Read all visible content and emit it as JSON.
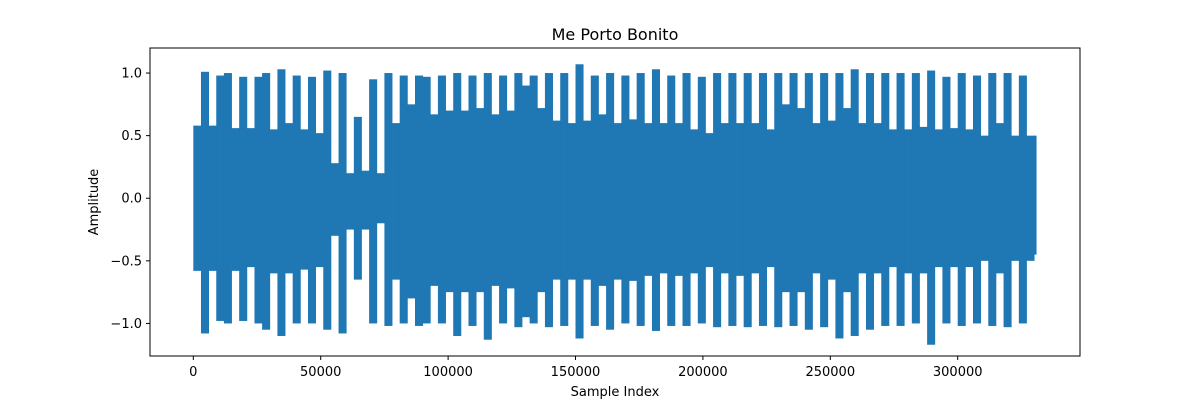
{
  "chart_data": {
    "type": "line",
    "title": "Me Porto Bonito",
    "xlabel": "Sample Index",
    "ylabel": "Amplitude",
    "xlim": [
      -17000,
      348000
    ],
    "ylim": [
      -1.26,
      1.2
    ],
    "x_ticks": [
      0,
      50000,
      100000,
      150000,
      200000,
      250000,
      300000
    ],
    "x_tick_labels": [
      "0",
      "50000",
      "100000",
      "150000",
      "200000",
      "250000",
      "300000"
    ],
    "y_ticks": [
      -1.0,
      -0.5,
      0.0,
      0.5,
      1.0
    ],
    "y_tick_labels": [
      "−1.0",
      "−0.5",
      "0.0",
      "0.5",
      "1.0"
    ],
    "grid": false,
    "legend": "none",
    "series": [
      {
        "color": "#1f77b4",
        "x": [
          0,
          3000,
          6000,
          9000,
          12000,
          15000,
          18000,
          21000,
          24000,
          27000,
          30000,
          33000,
          36000,
          39000,
          42000,
          45000,
          48000,
          51000,
          54000,
          57000,
          60000,
          63000,
          66000,
          69000,
          72000,
          75000,
          78000,
          81000,
          84000,
          87000,
          90000,
          93000,
          96000,
          99000,
          102000,
          105000,
          108000,
          111000,
          114000,
          117000,
          120000,
          123000,
          126000,
          129000,
          132000,
          135000,
          138000,
          141000,
          144000,
          147000,
          150000,
          153000,
          156000,
          159000,
          162000,
          165000,
          168000,
          171000,
          174000,
          177000,
          180000,
          183000,
          186000,
          189000,
          192000,
          195000,
          198000,
          201000,
          204000,
          207000,
          210000,
          213000,
          216000,
          219000,
          222000,
          225000,
          228000,
          231000,
          234000,
          237000,
          240000,
          243000,
          246000,
          249000,
          252000,
          255000,
          258000,
          261000,
          264000,
          267000,
          270000,
          273000,
          276000,
          279000,
          282000,
          285000,
          288000,
          291000,
          294000,
          297000,
          300000,
          303000,
          306000,
          309000,
          312000,
          315000,
          318000,
          321000,
          324000,
          327000,
          330000
        ],
        "upper": [
          0.58,
          1.01,
          0.58,
          0.98,
          1.0,
          0.56,
          0.97,
          0.56,
          0.97,
          1.0,
          0.55,
          1.03,
          0.6,
          0.98,
          0.55,
          0.97,
          0.52,
          1.02,
          0.28,
          1.0,
          0.2,
          0.65,
          0.22,
          0.95,
          0.2,
          1.0,
          0.6,
          0.98,
          0.75,
          0.98,
          0.97,
          0.67,
          0.98,
          0.7,
          1.0,
          0.7,
          0.98,
          0.72,
          1.0,
          0.67,
          0.98,
          0.7,
          1.0,
          0.9,
          0.98,
          0.72,
          1.0,
          0.62,
          1.0,
          0.6,
          1.07,
          0.62,
          0.98,
          0.67,
          1.0,
          0.6,
          0.98,
          0.63,
          1.0,
          0.6,
          1.03,
          0.6,
          0.98,
          0.6,
          1.0,
          0.55,
          0.97,
          0.52,
          1.0,
          0.6,
          1.0,
          0.6,
          1.0,
          0.6,
          1.0,
          0.55,
          1.0,
          0.75,
          1.0,
          0.72,
          1.0,
          0.6,
          1.0,
          0.62,
          1.0,
          0.72,
          1.03,
          0.6,
          1.0,
          0.6,
          1.0,
          0.55,
          1.0,
          0.55,
          1.0,
          0.57,
          1.02,
          0.55,
          0.97,
          0.56,
          1.0,
          0.55,
          0.98,
          0.5,
          1.0,
          0.6,
          1.0,
          0.5,
          0.98,
          0.5,
          0.5
        ],
        "lower": [
          -0.58,
          -1.08,
          -0.58,
          -0.98,
          -1.0,
          -0.58,
          -0.98,
          -0.55,
          -1.0,
          -1.05,
          -0.6,
          -1.1,
          -0.6,
          -1.0,
          -0.57,
          -1.0,
          -0.55,
          -1.05,
          -0.3,
          -1.08,
          -0.25,
          -0.65,
          -0.25,
          -1.0,
          -0.2,
          -1.02,
          -0.65,
          -1.0,
          -0.8,
          -1.02,
          -1.0,
          -0.7,
          -1.0,
          -0.75,
          -1.1,
          -0.75,
          -1.02,
          -0.75,
          -1.13,
          -0.7,
          -1.0,
          -0.72,
          -1.03,
          -0.95,
          -1.0,
          -0.75,
          -1.03,
          -0.65,
          -1.02,
          -0.65,
          -1.12,
          -0.65,
          -1.02,
          -0.7,
          -1.05,
          -0.65,
          -1.0,
          -0.66,
          -1.02,
          -0.62,
          -1.06,
          -0.6,
          -1.02,
          -0.62,
          -1.02,
          -0.6,
          -1.0,
          -0.55,
          -1.03,
          -0.6,
          -1.02,
          -0.62,
          -1.03,
          -0.6,
          -1.02,
          -0.55,
          -1.03,
          -0.75,
          -1.02,
          -0.75,
          -1.05,
          -0.6,
          -1.03,
          -0.65,
          -1.12,
          -0.75,
          -1.1,
          -0.6,
          -1.05,
          -0.6,
          -1.02,
          -0.55,
          -1.02,
          -0.6,
          -1.0,
          -0.6,
          -1.17,
          -0.55,
          -1.0,
          -0.55,
          -1.02,
          -0.55,
          -1.0,
          -0.5,
          -1.02,
          -0.6,
          -1.03,
          -0.5,
          -1.0,
          -0.5,
          -0.45
        ]
      }
    ]
  }
}
